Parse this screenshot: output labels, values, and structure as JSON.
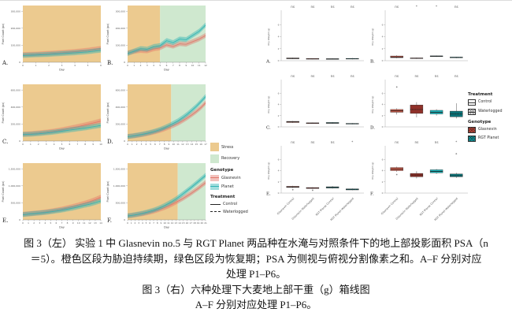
{
  "caption": {
    "line1": "图 3（左） 实验 1 中 Glasnevin no.5 与 RGT Planet 两品种在水淹与对照条件下的地上部投影面积 PSA（n",
    "line2": "＝5）。橙色区段为胁迫持续期，绿色区段为恢复期；PSA 为侧视与俯视分割像素之和。A–F 分别对应",
    "line3": "处理 P1–P6。",
    "line4": "图 3（右）六种处理下大麦地上部干重（g）箱线图",
    "line5": "A–F 分别对应处理 P1–P6。"
  },
  "legend_left": {
    "stress": "Stress",
    "recovery": "Recovery",
    "genotype_header": "Genotype",
    "glasnevin": "Glasnevin",
    "planet": "Planet",
    "treatment_header": "Treatment",
    "control": "Control",
    "waterlogged": "Waterlogged"
  },
  "legend_right": {
    "treatment_header": "Treatment",
    "control": "Control",
    "waterlogged": "Waterlogged",
    "genotype_header": "Genotype",
    "glasnevin": "Glasnevin",
    "rgt_planet": "RGT Planet"
  },
  "chart_data": [
    {
      "type": "line",
      "x_label": "Day",
      "y_label": "Pixel Count (px)",
      "legend_position": "right",
      "colors": {
        "stress": "#ecca8f",
        "recovery": "#cfe8cf",
        "glasnevin": "#e2766a",
        "planet": "#2fb3b3"
      },
      "panels": [
        {
          "label": "A.",
          "days": 6,
          "stress_end": 6,
          "y_ticks": [
            "100,000",
            "200,000",
            "300,000"
          ],
          "series": {
            "glasnevin": [
              0.13,
              0.14,
              0.155,
              0.17,
              0.19,
              0.215,
              0.25
            ],
            "planet": [
              0.115,
              0.125,
              0.135,
              0.15,
              0.165,
              0.185,
              0.215
            ]
          }
        },
        {
          "label": "B.",
          "days": 12,
          "stress_end": 5,
          "y_ticks": [
            "100,000",
            "200,000",
            "300,000"
          ],
          "series": {
            "glasnevin": [
              0.16,
              0.19,
              0.21,
              0.2,
              0.24,
              0.26,
              0.32,
              0.29,
              0.34,
              0.33,
              0.38,
              0.43,
              0.5
            ],
            "planet": [
              0.15,
              0.2,
              0.245,
              0.235,
              0.285,
              0.305,
              0.4,
              0.36,
              0.43,
              0.42,
              0.5,
              0.58,
              0.7
            ]
          }
        },
        {
          "label": "C.",
          "days": 10,
          "stress_end": 10,
          "y_ticks": [
            "200,000",
            "400,000",
            "600,000"
          ],
          "series": {
            "glasnevin": [
              0.115,
              0.125,
              0.14,
              0.155,
              0.175,
              0.2,
              0.23,
              0.26,
              0.295,
              0.33,
              0.37
            ],
            "planet": [
              0.11,
              0.115,
              0.125,
              0.14,
              0.155,
              0.175,
              0.195,
              0.215,
              0.235,
              0.26,
              0.285
            ]
          }
        },
        {
          "label": "D.",
          "days": 17,
          "stress_end": 9.5,
          "y_ticks": [
            "200,000",
            "400,000",
            "600,000"
          ],
          "series": {
            "glasnevin": [
              0.07,
              0.08,
              0.09,
              0.105,
              0.12,
              0.14,
              0.16,
              0.185,
              0.215,
              0.25,
              0.285,
              0.325,
              0.375,
              0.43,
              0.49,
              0.555,
              0.63,
              0.72
            ],
            "planet": [
              0.07,
              0.08,
              0.095,
              0.11,
              0.13,
              0.15,
              0.175,
              0.205,
              0.24,
              0.28,
              0.325,
              0.375,
              0.435,
              0.5,
              0.575,
              0.655,
              0.745,
              0.84
            ]
          }
        },
        {
          "label": "E.",
          "days": 14,
          "stress_end": 14,
          "y_ticks": [
            "500,000",
            "1,000,000",
            "1,500,000"
          ],
          "series": {
            "glasnevin": [
              0.09,
              0.1,
              0.11,
              0.12,
              0.135,
              0.15,
              0.17,
              0.19,
              0.215,
              0.24,
              0.27,
              0.3,
              0.335,
              0.375,
              0.42
            ],
            "planet": [
              0.085,
              0.095,
              0.105,
              0.115,
              0.125,
              0.14,
              0.155,
              0.17,
              0.19,
              0.21,
              0.235,
              0.26,
              0.285,
              0.315,
              0.35
            ]
          }
        },
        {
          "label": "F.",
          "days": 21,
          "stress_end": 13.5,
          "y_ticks": [
            "500,000",
            "1,000,000",
            "1,500,000"
          ],
          "series": {
            "glasnevin": [
              0.06,
              0.068,
              0.078,
              0.09,
              0.1,
              0.115,
              0.13,
              0.15,
              0.17,
              0.195,
              0.22,
              0.25,
              0.285,
              0.32,
              0.36,
              0.4,
              0.445,
              0.49,
              0.54,
              0.59,
              0.645,
              0.7
            ],
            "planet": [
              0.06,
              0.07,
              0.082,
              0.095,
              0.11,
              0.128,
              0.148,
              0.17,
              0.195,
              0.225,
              0.26,
              0.3,
              0.34,
              0.385,
              0.435,
              0.49,
              0.545,
              0.6,
              0.66,
              0.72,
              0.78,
              0.84
            ]
          }
        }
      ]
    },
    {
      "type": "box",
      "y_label": "Dry Weight (g)",
      "y_max": 8,
      "y_ticks": [
        0,
        2,
        4,
        6
      ],
      "categories": [
        "Glasnevin Control",
        "Glasnevin Waterlogged",
        "RGT Planet Control",
        "RGT Planet Waterlogged"
      ],
      "styles": [
        {
          "color": "#d65f4d",
          "hatch": false
        },
        {
          "color": "#a93a31",
          "hatch": true
        },
        {
          "color": "#1cb4ba",
          "hatch": false
        },
        {
          "color": "#0e868c",
          "hatch": true
        }
      ],
      "panels": [
        {
          "label": "A.",
          "sig": [
            "ns",
            "ns",
            "ns",
            "ns"
          ],
          "boxes": [
            {
              "lo": 0.28,
              "q1": 0.32,
              "med": 0.38,
              "q3": 0.45,
              "hi": 0.5
            },
            {
              "lo": 0.22,
              "q1": 0.26,
              "med": 0.3,
              "q3": 0.36,
              "hi": 0.4
            },
            {
              "lo": 0.2,
              "q1": 0.24,
              "med": 0.28,
              "q3": 0.33,
              "hi": 0.38
            },
            {
              "lo": 0.22,
              "q1": 0.27,
              "med": 0.32,
              "q3": 0.38,
              "hi": 0.44
            }
          ]
        },
        {
          "label": "B.",
          "sig": [
            "ns",
            "*",
            "*",
            "ns"
          ],
          "boxes": [
            {
              "lo": 0.4,
              "q1": 0.5,
              "med": 0.62,
              "q3": 0.78,
              "hi": 0.9
            },
            {
              "lo": 0.3,
              "q1": 0.35,
              "med": 0.4,
              "q3": 0.46,
              "hi": 0.52
            },
            {
              "lo": 0.62,
              "q1": 0.68,
              "med": 0.74,
              "q3": 0.8,
              "hi": 0.86
            },
            {
              "lo": 0.42,
              "q1": 0.48,
              "med": 0.54,
              "q3": 0.6,
              "hi": 0.66
            }
          ]
        },
        {
          "label": "C.",
          "sig": [
            "ns",
            "ns",
            "ns",
            "ns"
          ],
          "boxes": [
            {
              "lo": 0.7,
              "q1": 0.78,
              "med": 0.88,
              "q3": 0.98,
              "hi": 1.05
            },
            {
              "lo": 0.55,
              "q1": 0.6,
              "med": 0.66,
              "q3": 0.72,
              "hi": 0.78
            },
            {
              "lo": 0.55,
              "q1": 0.62,
              "med": 0.7,
              "q3": 0.78,
              "hi": 0.85
            },
            {
              "lo": 0.45,
              "q1": 0.5,
              "med": 0.56,
              "q3": 0.62,
              "hi": 0.68
            }
          ]
        },
        {
          "label": "D.",
          "sig": [
            "ns",
            "ns",
            "ns",
            "ns"
          ],
          "boxes": [
            {
              "lo": 2.2,
              "q1": 2.6,
              "med": 2.85,
              "q3": 3.1,
              "hi": 3.3,
              "out": [
                7.1
              ]
            },
            {
              "lo": 1.7,
              "q1": 2.4,
              "med": 3.1,
              "q3": 3.9,
              "hi": 4.4
            },
            {
              "lo": 2.0,
              "q1": 2.3,
              "med": 2.6,
              "q3": 2.95,
              "hi": 3.15
            },
            {
              "lo": 1.5,
              "q1": 1.8,
              "med": 2.3,
              "q3": 2.8,
              "hi": 4.2
            }
          ]
        },
        {
          "label": "E.",
          "sig": [
            "ns",
            "ns",
            "ns",
            "*"
          ],
          "boxes": [
            {
              "lo": 0.9,
              "q1": 1.0,
              "med": 1.1,
              "q3": 1.2,
              "hi": 1.3,
              "out": [
                0.6
              ]
            },
            {
              "lo": 0.75,
              "q1": 0.82,
              "med": 0.9,
              "q3": 0.98,
              "hi": 1.05,
              "out": [
                0.5
              ]
            },
            {
              "lo": 0.8,
              "q1": 0.9,
              "med": 1.0,
              "q3": 1.12,
              "hi": 1.25
            },
            {
              "lo": 0.5,
              "q1": 0.56,
              "med": 0.65,
              "q3": 0.75,
              "hi": 0.82
            }
          ]
        },
        {
          "label": "F.",
          "sig": [
            "ns",
            "ns",
            "ns",
            "*"
          ],
          "boxes": [
            {
              "lo": 3.8,
              "q1": 4.0,
              "med": 4.25,
              "q3": 4.55,
              "hi": 4.7,
              "out": [
                3.3
              ]
            },
            {
              "lo": 2.6,
              "q1": 2.9,
              "med": 3.2,
              "q3": 3.5,
              "hi": 3.9
            },
            {
              "lo": 3.4,
              "q1": 3.6,
              "med": 3.85,
              "q3": 4.15,
              "hi": 4.3
            },
            {
              "lo": 2.7,
              "q1": 2.9,
              "med": 3.1,
              "q3": 3.4,
              "hi": 3.6,
              "out": [
                7.0
              ]
            }
          ]
        }
      ]
    }
  ]
}
